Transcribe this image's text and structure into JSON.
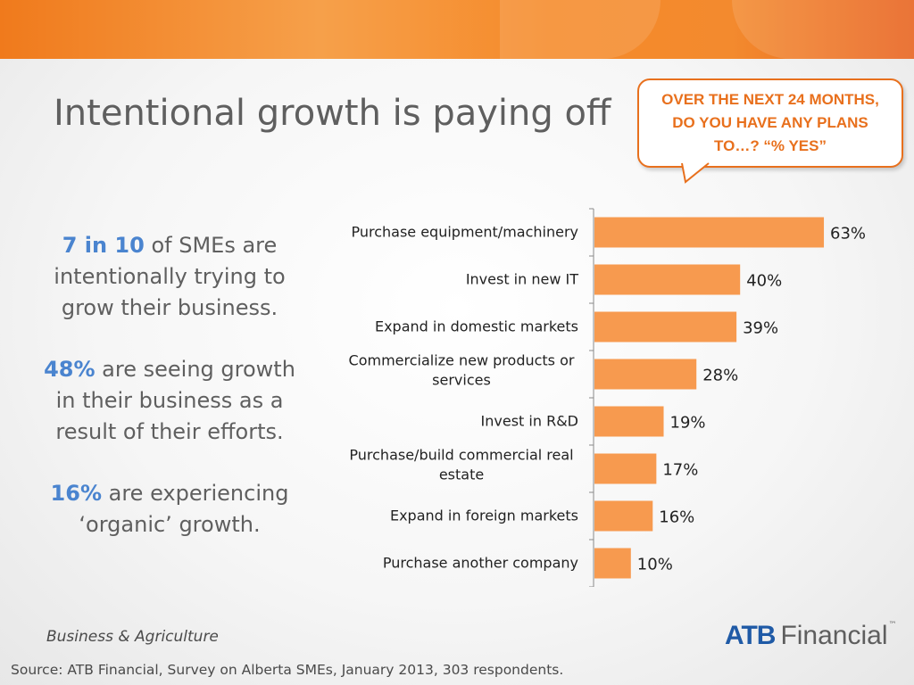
{
  "title": "Intentional growth is paying off",
  "callout": "OVER THE NEXT 24 MONTHS, DO YOU HAVE ANY PLANS TO…? “% YES”",
  "stats": [
    {
      "highlight": "7 in 10",
      "text": " of SMEs are intentionally trying to grow their business."
    },
    {
      "highlight": "48%",
      "text": " are seeing growth in their business as a result of their efforts."
    },
    {
      "highlight": "16%",
      "text": " are experiencing ‘organic’ growth."
    }
  ],
  "footer": {
    "tagline": "Business & Agriculture",
    "logo_brand": "ATB",
    "logo_word": "Financial",
    "logo_tm": "™",
    "source": "Source:  ATB Financial, Survey on Alberta SMEs, January 2013, 303 respondents."
  },
  "colors": {
    "bar": "#f79a4f",
    "accent": "#e8701d",
    "highlight": "#4a84cf",
    "title": "#5f5f5f"
  },
  "chart_data": {
    "type": "bar",
    "orientation": "horizontal",
    "categories": [
      "Purchase equipment/machinery",
      "Invest in new IT",
      "Expand in domestic markets",
      "Commercialize new products or services",
      "Invest in R&D",
      "Purchase/build commercial real estate",
      "Expand in foreign markets",
      "Purchase another company"
    ],
    "values": [
      63,
      40,
      39,
      28,
      19,
      17,
      16,
      10
    ],
    "value_labels": [
      "63%",
      "40%",
      "39%",
      "28%",
      "19%",
      "17%",
      "16%",
      "10%"
    ],
    "category_lines": [
      [
        "Purchase equipment/machinery"
      ],
      [
        "Invest in new IT"
      ],
      [
        "Expand in domestic markets"
      ],
      [
        "Commercialize new products or",
        "services"
      ],
      [
        "Invest in R&D"
      ],
      [
        "Purchase/build commercial real",
        "estate"
      ],
      [
        "Expand in foreign markets"
      ],
      [
        "Purchase another company"
      ]
    ],
    "xlim": [
      0,
      100
    ],
    "grid": false,
    "legend": "none"
  }
}
